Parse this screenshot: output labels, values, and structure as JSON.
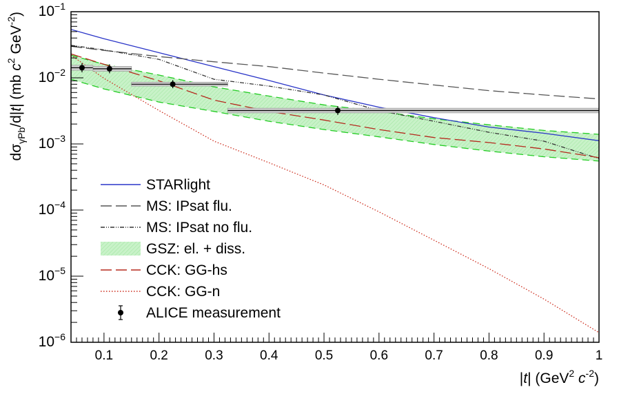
{
  "chart_data": {
    "type": "line",
    "xlabel_parts": [
      "|",
      "t",
      "| (GeV",
      "2",
      " ",
      "c",
      "-2",
      ")"
    ],
    "ylabel_parts": [
      "dσ",
      "γPb",
      "/d|",
      "t",
      "| (mb ",
      "c",
      "2",
      " GeV",
      "-2",
      ")"
    ],
    "xlim": [
      0.04,
      1.0
    ],
    "ylim": [
      1e-06,
      0.1
    ],
    "yscale": "log",
    "grid": false,
    "legend_position": "bottom-left",
    "x_ticks": [
      0.1,
      0.2,
      0.3,
      0.4,
      0.5,
      0.6,
      0.7,
      0.8,
      0.9,
      1
    ],
    "x_tick_labels": [
      "0.1",
      "0.2",
      "0.3",
      "0.4",
      "0.5",
      "0.6",
      "0.7",
      "0.8",
      "0.9",
      "1"
    ],
    "y_ticks": [
      {
        "value": 1e-06,
        "base": "10",
        "exp": "−6"
      },
      {
        "value": 1e-05,
        "base": "10",
        "exp": "−5"
      },
      {
        "value": 0.0001,
        "base": "10",
        "exp": "−4"
      },
      {
        "value": 0.001,
        "base": "10",
        "exp": "−3"
      },
      {
        "value": 0.01,
        "base": "10",
        "exp": "−2"
      },
      {
        "value": 0.1,
        "base": "10",
        "exp": "−1"
      }
    ],
    "series": [
      {
        "name": "STARlight",
        "color": "#2a35c8",
        "style": "solid",
        "points": [
          [
            0.04,
            0.054
          ],
          [
            0.1,
            0.039
          ],
          [
            0.2,
            0.024
          ],
          [
            0.3,
            0.0148
          ],
          [
            0.4,
            0.0091
          ],
          [
            0.5,
            0.0055
          ],
          [
            0.6,
            0.0036
          ],
          [
            0.7,
            0.0025
          ],
          [
            0.8,
            0.0018
          ],
          [
            0.9,
            0.00145
          ],
          [
            1.0,
            0.00112
          ]
        ]
      },
      {
        "name": "MS: IPsat flu.",
        "color": "#555555",
        "style": "longdash",
        "points": [
          [
            0.04,
            0.03
          ],
          [
            0.1,
            0.026
          ],
          [
            0.2,
            0.021
          ],
          [
            0.3,
            0.0175
          ],
          [
            0.4,
            0.0148
          ],
          [
            0.5,
            0.0118
          ],
          [
            0.6,
            0.0095
          ],
          [
            0.7,
            0.0078
          ],
          [
            0.8,
            0.0064
          ],
          [
            0.9,
            0.0055
          ],
          [
            1.0,
            0.0048
          ]
        ]
      },
      {
        "name": "MS: IPsat no flu.",
        "color": "#333333",
        "style": "dashdot",
        "points": [
          [
            0.04,
            0.031
          ],
          [
            0.1,
            0.0265
          ],
          [
            0.2,
            0.019
          ],
          [
            0.3,
            0.0095
          ],
          [
            0.4,
            0.0075
          ],
          [
            0.5,
            0.0055
          ],
          [
            0.6,
            0.0032
          ],
          [
            0.7,
            0.0022
          ],
          [
            0.8,
            0.0015
          ],
          [
            0.9,
            0.0011
          ],
          [
            1.0,
            0.0006
          ]
        ]
      },
      {
        "name": "CCK: GG-hs",
        "color": "#b5281c",
        "style": "longdash",
        "points": [
          [
            0.04,
            0.023
          ],
          [
            0.1,
            0.016
          ],
          [
            0.2,
            0.009
          ],
          [
            0.3,
            0.0046
          ],
          [
            0.4,
            0.0031
          ],
          [
            0.5,
            0.0023
          ],
          [
            0.6,
            0.00165
          ],
          [
            0.7,
            0.00125
          ],
          [
            0.8,
            0.00105
          ],
          [
            0.9,
            0.00084
          ],
          [
            1.0,
            0.00062
          ]
        ]
      },
      {
        "name": "CCK: GG-n",
        "color": "#cc2b1b",
        "style": "dotted",
        "points": [
          [
            0.04,
            0.022
          ],
          [
            0.1,
            0.0098
          ],
          [
            0.2,
            0.0032
          ],
          [
            0.3,
            0.0011
          ],
          [
            0.4,
            0.00052
          ],
          [
            0.5,
            0.00024
          ],
          [
            0.6,
            9.4e-05
          ],
          [
            0.7,
            3.5e-05
          ],
          [
            0.8,
            1.3e-05
          ],
          [
            0.9,
            4.5e-06
          ],
          [
            1.0,
            1.4e-06
          ]
        ]
      }
    ],
    "band": {
      "name": "GSZ: el. + diss.",
      "fill": "#c8f2c8",
      "edge_color": "#22cc22",
      "upper": [
        [
          0.04,
          0.022
        ],
        [
          0.1,
          0.016
        ],
        [
          0.2,
          0.011
        ],
        [
          0.3,
          0.0073
        ],
        [
          0.4,
          0.0053
        ],
        [
          0.5,
          0.0039
        ],
        [
          0.6,
          0.0031
        ],
        [
          0.7,
          0.0024
        ],
        [
          0.8,
          0.00195
        ],
        [
          0.9,
          0.0016
        ],
        [
          1.0,
          0.0014
        ]
      ],
      "lower": [
        [
          0.04,
          0.0095
        ],
        [
          0.1,
          0.0068
        ],
        [
          0.2,
          0.0043
        ],
        [
          0.3,
          0.0031
        ],
        [
          0.4,
          0.0022
        ],
        [
          0.5,
          0.00165
        ],
        [
          0.6,
          0.00128
        ],
        [
          0.7,
          0.00098
        ],
        [
          0.8,
          0.00078
        ],
        [
          0.9,
          0.00064
        ],
        [
          1.0,
          0.00055
        ]
      ]
    },
    "measurement": {
      "name": "ALICE measurement",
      "color": "#000000",
      "points": [
        {
          "x": 0.06,
          "y": 0.0142,
          "xlo": 0.04,
          "xhi": 0.08,
          "ylo": 0.013,
          "yhi": 0.0155
        },
        {
          "x": 0.11,
          "y": 0.0137,
          "xlo": 0.08,
          "xhi": 0.15,
          "ylo": 0.0126,
          "yhi": 0.0149
        },
        {
          "x": 0.225,
          "y": 0.008,
          "xlo": 0.15,
          "xhi": 0.325,
          "ylo": 0.0075,
          "yhi": 0.0086
        },
        {
          "x": 0.525,
          "y": 0.0032,
          "xlo": 0.325,
          "xhi": 1.0,
          "ylo": 0.00295,
          "yhi": 0.00347
        }
      ]
    },
    "legend": [
      {
        "label": "STARlight",
        "kind": "line",
        "color": "#2a35c8",
        "style": "solid"
      },
      {
        "label": "MS: IPsat flu.",
        "kind": "line",
        "color": "#555555",
        "style": "longdash"
      },
      {
        "label": "MS: IPsat no flu.",
        "kind": "line",
        "color": "#333333",
        "style": "dashdot"
      },
      {
        "label": "GSZ: el. + diss.",
        "kind": "band",
        "color": "#c8f2c8",
        "style": "fill"
      },
      {
        "label": "CCK: GG-hs",
        "kind": "line",
        "color": "#b5281c",
        "style": "longdash"
      },
      {
        "label": "CCK: GG-n",
        "kind": "line",
        "color": "#cc2b1b",
        "style": "dotted"
      },
      {
        "label": "ALICE measurement",
        "kind": "marker",
        "color": "#000000",
        "style": "point"
      }
    ]
  }
}
